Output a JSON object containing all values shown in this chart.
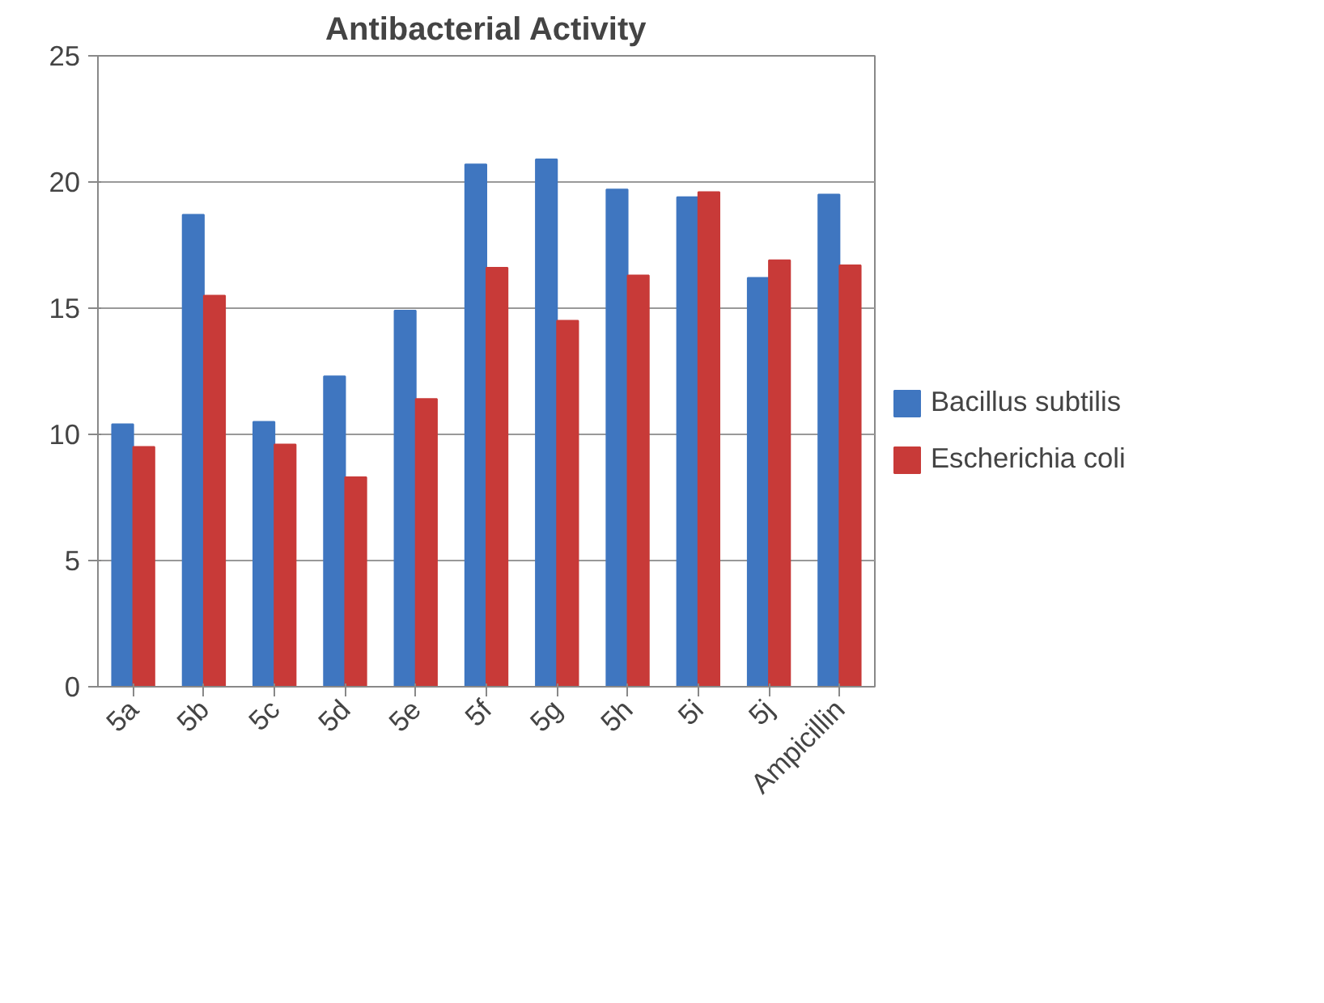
{
  "chart_data": {
    "type": "bar",
    "title": "Antibacterial Activity",
    "categories": [
      "5a",
      "5b",
      "5c",
      "5d",
      "5e",
      "5f",
      "5g",
      "5h",
      "5i",
      "5j",
      "Ampicillin"
    ],
    "series": [
      {
        "name": "Bacillus subtilis",
        "color": "#3f76c0",
        "values": [
          10.4,
          18.7,
          10.5,
          12.3,
          14.9,
          20.7,
          20.9,
          19.7,
          19.4,
          16.2,
          19.5
        ]
      },
      {
        "name": "Escherichia coli",
        "color": "#c83a38",
        "values": [
          9.5,
          15.5,
          9.6,
          8.3,
          11.4,
          16.6,
          14.5,
          16.3,
          19.6,
          16.9,
          16.7
        ]
      }
    ],
    "ylim": [
      0,
      25
    ],
    "yticks": [
      0,
      5,
      10,
      15,
      20,
      25
    ],
    "grid": "y",
    "legend": "right"
  }
}
